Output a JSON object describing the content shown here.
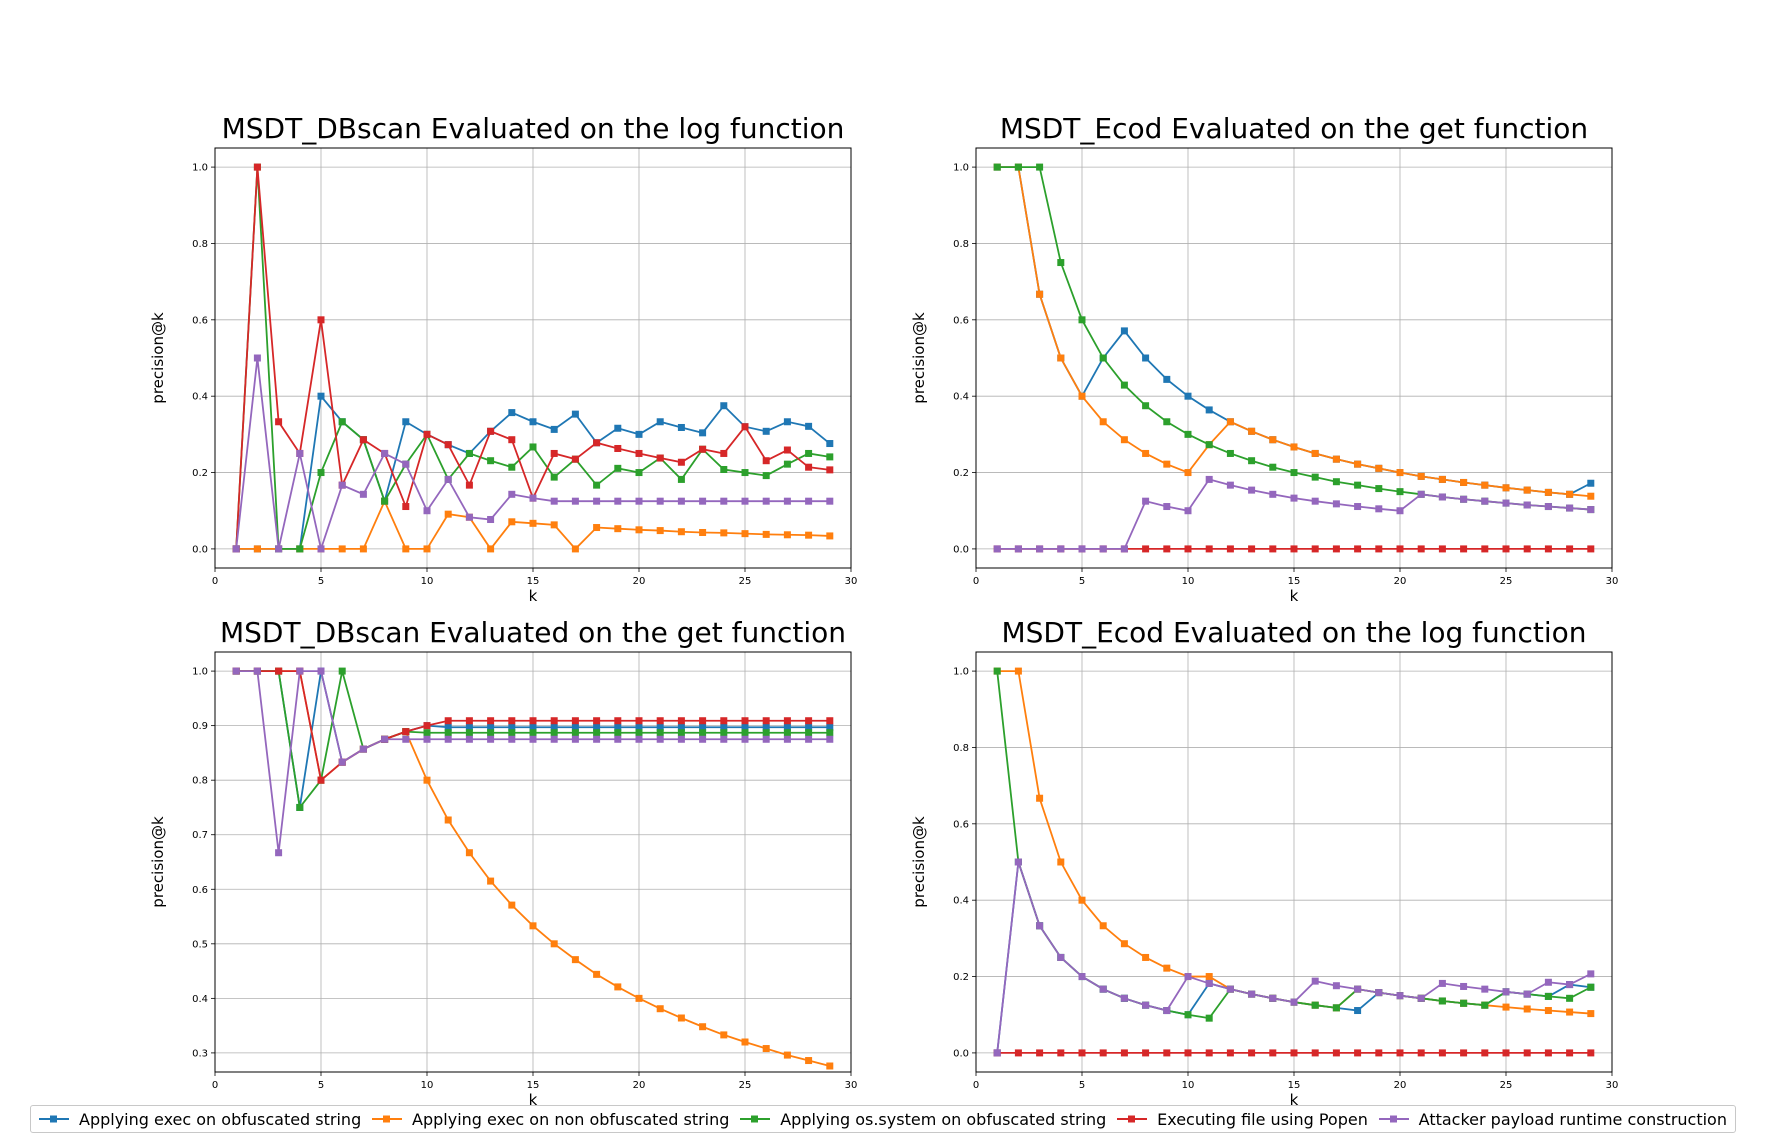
{
  "chart_data": [
    {
      "type": "line",
      "title": "MSDT_DBscan Evaluated on the log function",
      "xlabel": "k",
      "ylabel": "precision@k",
      "xlim": [
        0,
        30
      ],
      "ylim": [
        -0.05,
        1.05
      ],
      "xticks": [
        0,
        5,
        10,
        15,
        20,
        25,
        30
      ],
      "yticks": [
        0.0,
        0.2,
        0.4,
        0.6,
        0.8,
        1.0
      ],
      "grid": true,
      "x": [
        1,
        2,
        3,
        4,
        5,
        6,
        7,
        8,
        9,
        10,
        11,
        12,
        13,
        14,
        15,
        16,
        17,
        18,
        19,
        20,
        21,
        22,
        23,
        24,
        25,
        26,
        27,
        28,
        29
      ],
      "series": [
        {
          "name": "Applying exec on obfuscated string",
          "values": [
            0,
            0,
            0,
            0,
            0.4,
            0.333,
            0.286,
            0.125,
            0.333,
            0.3,
            0.273,
            0.25,
            0.308,
            0.357,
            0.333,
            0.313,
            0.353,
            0.278,
            0.316,
            0.3,
            0.333,
            0.318,
            0.304,
            0.375,
            0.32,
            0.308,
            0.333,
            0.321,
            0.276
          ]
        },
        {
          "name": "Applying exec on non obfuscated string",
          "values": [
            0,
            0,
            0,
            0,
            0,
            0,
            0,
            0.125,
            0,
            0,
            0.091,
            0.083,
            0,
            0.071,
            0.067,
            0.063,
            0,
            0.056,
            0.053,
            0.05,
            0.048,
            0.045,
            0.043,
            0.042,
            0.04,
            0.038,
            0.037,
            0.036,
            0.034
          ]
        },
        {
          "name": "Applying os.system on obfuscated string",
          "values": [
            0,
            1.0,
            0,
            0,
            0.2,
            0.333,
            0.286,
            0.125,
            0.222,
            0.3,
            0.182,
            0.25,
            0.231,
            0.214,
            0.267,
            0.188,
            0.235,
            0.167,
            0.211,
            0.2,
            0.238,
            0.182,
            0.261,
            0.208,
            0.2,
            0.192,
            0.222,
            0.25,
            0.241
          ]
        },
        {
          "name": "Executing file using Popen",
          "values": [
            0,
            1.0,
            0.333,
            0.25,
            0.6,
            0.167,
            0.286,
            0.25,
            0.111,
            0.3,
            0.273,
            0.167,
            0.308,
            0.286,
            0.133,
            0.25,
            0.235,
            0.278,
            0.263,
            0.25,
            0.238,
            0.227,
            0.261,
            0.25,
            0.32,
            0.231,
            0.259,
            0.214,
            0.207
          ]
        },
        {
          "name": "Attacker payload runtime construction",
          "values": [
            0,
            0.5,
            0,
            0.25,
            0,
            0.167,
            0.143,
            0.25,
            0.222,
            0.1,
            0.182,
            0.083,
            0.077,
            0.143,
            0.133,
            0.125,
            0.125,
            0.125,
            0.125,
            0.125,
            0.125,
            0.125,
            0.125,
            0.125,
            0.125,
            0.125,
            0.125,
            0.125,
            0.125
          ]
        }
      ]
    },
    {
      "type": "line",
      "title": "MSDT_Ecod Evaluated on the get function",
      "xlabel": "k",
      "ylabel": "precision@k",
      "xlim": [
        0,
        30
      ],
      "ylim": [
        -0.05,
        1.05
      ],
      "xticks": [
        0,
        5,
        10,
        15,
        20,
        25,
        30
      ],
      "yticks": [
        0.0,
        0.2,
        0.4,
        0.6,
        0.8,
        1.0
      ],
      "grid": true,
      "x": [
        1,
        2,
        3,
        4,
        5,
        6,
        7,
        8,
        9,
        10,
        11,
        12,
        13,
        14,
        15,
        16,
        17,
        18,
        19,
        20,
        21,
        22,
        23,
        24,
        25,
        26,
        27,
        28,
        29
      ],
      "series": [
        {
          "name": "Applying exec on obfuscated string",
          "values": [
            1.0,
            1.0,
            0.667,
            0.5,
            0.4,
            0.5,
            0.571,
            0.5,
            0.444,
            0.4,
            0.364,
            0.333,
            0.308,
            0.286,
            0.267,
            0.25,
            0.235,
            0.222,
            0.211,
            0.2,
            0.19,
            0.182,
            0.174,
            0.167,
            0.16,
            0.154,
            0.148,
            0.143,
            0.172
          ]
        },
        {
          "name": "Applying exec on non obfuscated string",
          "values": [
            1.0,
            1.0,
            0.667,
            0.5,
            0.4,
            0.333,
            0.286,
            0.25,
            0.222,
            0.2,
            0.273,
            0.333,
            0.308,
            0.286,
            0.267,
            0.25,
            0.235,
            0.222,
            0.211,
            0.2,
            0.19,
            0.182,
            0.174,
            0.167,
            0.16,
            0.154,
            0.148,
            0.143,
            0.138
          ]
        },
        {
          "name": "Applying os.system on obfuscated string",
          "values": [
            1.0,
            1.0,
            1.0,
            0.75,
            0.6,
            0.5,
            0.429,
            0.375,
            0.333,
            0.3,
            0.273,
            0.25,
            0.231,
            0.214,
            0.2,
            0.188,
            0.176,
            0.167,
            0.158,
            0.15,
            0.143,
            0.136,
            0.13,
            0.125,
            0.12,
            0.115,
            0.111,
            0.107,
            0.103
          ]
        },
        {
          "name": "Executing file using Popen",
          "values": [
            0,
            0,
            0,
            0,
            0,
            0,
            0,
            0,
            0,
            0,
            0,
            0,
            0,
            0,
            0,
            0,
            0,
            0,
            0,
            0,
            0,
            0,
            0,
            0,
            0,
            0,
            0,
            0,
            0
          ]
        },
        {
          "name": "Attacker payload runtime construction",
          "values": [
            0,
            0,
            0,
            0,
            0,
            0,
            0,
            0.125,
            0.111,
            0.1,
            0.182,
            0.167,
            0.154,
            0.143,
            0.133,
            0.125,
            0.118,
            0.111,
            0.105,
            0.1,
            0.143,
            0.136,
            0.13,
            0.125,
            0.12,
            0.115,
            0.111,
            0.107,
            0.103
          ]
        }
      ]
    },
    {
      "type": "line",
      "title": "MSDT_DBscan Evaluated on the get function",
      "xlabel": "k",
      "ylabel": "precision@k",
      "xlim": [
        0,
        30
      ],
      "ylim": [
        0.265,
        1.035
      ],
      "xticks": [
        0,
        5,
        10,
        15,
        20,
        25,
        30
      ],
      "yticks": [
        0.3,
        0.4,
        0.5,
        0.6,
        0.7,
        0.8,
        0.9,
        1.0
      ],
      "grid": true,
      "x": [
        1,
        2,
        3,
        4,
        5,
        6,
        7,
        8,
        9,
        10,
        11,
        12,
        13,
        14,
        15,
        16,
        17,
        18,
        19,
        20,
        21,
        22,
        23,
        24,
        25,
        26,
        27,
        28,
        29
      ],
      "series": [
        {
          "name": "Applying exec on obfuscated string",
          "values": [
            1.0,
            1.0,
            1.0,
            0.75,
            1.0,
            0.833,
            0.857,
            0.875,
            0.889,
            0.9,
            0.897,
            0.897,
            0.897,
            0.897,
            0.897,
            0.897,
            0.897,
            0.897,
            0.897,
            0.897,
            0.897,
            0.897,
            0.897,
            0.897,
            0.897,
            0.897,
            0.897,
            0.897,
            0.897
          ]
        },
        {
          "name": "Applying exec on non obfuscated string",
          "values": [
            1.0,
            1.0,
            1.0,
            1.0,
            0.8,
            0.833,
            0.857,
            0.875,
            0.889,
            0.8,
            0.727,
            0.667,
            0.615,
            0.571,
            0.533,
            0.5,
            0.471,
            0.444,
            0.421,
            0.4,
            0.381,
            0.364,
            0.348,
            0.333,
            0.32,
            0.308,
            0.296,
            0.286,
            0.276
          ]
        },
        {
          "name": "Applying os.system on obfuscated string",
          "values": [
            1.0,
            1.0,
            1.0,
            0.75,
            0.8,
            1.0,
            0.857,
            0.875,
            0.889,
            0.887,
            0.887,
            0.887,
            0.887,
            0.887,
            0.887,
            0.887,
            0.887,
            0.887,
            0.887,
            0.887,
            0.887,
            0.887,
            0.887,
            0.887,
            0.887,
            0.887,
            0.887,
            0.887,
            0.887
          ]
        },
        {
          "name": "Executing file using Popen",
          "values": [
            1.0,
            1.0,
            1.0,
            1.0,
            0.8,
            0.833,
            0.857,
            0.875,
            0.889,
            0.9,
            0.909,
            0.909,
            0.909,
            0.909,
            0.909,
            0.909,
            0.909,
            0.909,
            0.909,
            0.909,
            0.909,
            0.909,
            0.909,
            0.909,
            0.909,
            0.909,
            0.909,
            0.909,
            0.909
          ]
        },
        {
          "name": "Attacker payload runtime construction",
          "values": [
            1.0,
            1.0,
            0.667,
            1.0,
            1.0,
            0.833,
            0.857,
            0.875,
            0.875,
            0.875,
            0.875,
            0.875,
            0.875,
            0.875,
            0.875,
            0.875,
            0.875,
            0.875,
            0.875,
            0.875,
            0.875,
            0.875,
            0.875,
            0.875,
            0.875,
            0.875,
            0.875,
            0.875,
            0.875
          ]
        }
      ]
    },
    {
      "type": "line",
      "title": "MSDT_Ecod Evaluated on the log function",
      "xlabel": "k",
      "ylabel": "precision@k",
      "xlim": [
        0,
        30
      ],
      "ylim": [
        -0.05,
        1.05
      ],
      "xticks": [
        0,
        5,
        10,
        15,
        20,
        25,
        30
      ],
      "yticks": [
        0.0,
        0.2,
        0.4,
        0.6,
        0.8,
        1.0
      ],
      "grid": true,
      "x": [
        1,
        2,
        3,
        4,
        5,
        6,
        7,
        8,
        9,
        10,
        11,
        12,
        13,
        14,
        15,
        16,
        17,
        18,
        19,
        20,
        21,
        22,
        23,
        24,
        25,
        26,
        27,
        28,
        29
      ],
      "series": [
        {
          "name": "Applying exec on obfuscated string",
          "values": [
            0,
            0.5,
            0.333,
            0.25,
            0.2,
            0.167,
            0.143,
            0.125,
            0.111,
            0.1,
            0.182,
            0.167,
            0.154,
            0.143,
            0.133,
            0.125,
            0.118,
            0.111,
            0.158,
            0.15,
            0.143,
            0.136,
            0.13,
            0.125,
            0.16,
            0.154,
            0.148,
            0.179,
            0.172
          ]
        },
        {
          "name": "Applying exec on non obfuscated string",
          "values": [
            1.0,
            1.0,
            0.667,
            0.5,
            0.4,
            0.333,
            0.286,
            0.25,
            0.222,
            0.2,
            0.2,
            0.167,
            0.154,
            0.143,
            0.133,
            0.125,
            0.118,
            0.167,
            0.158,
            0.15,
            0.143,
            0.136,
            0.13,
            0.125,
            0.12,
            0.115,
            0.111,
            0.107,
            0.103
          ]
        },
        {
          "name": "Applying os.system on obfuscated string",
          "values": [
            1.0,
            0.5,
            0.333,
            0.25,
            0.2,
            0.167,
            0.143,
            0.125,
            0.111,
            0.1,
            0.091,
            0.167,
            0.154,
            0.143,
            0.133,
            0.125,
            0.118,
            0.167,
            0.158,
            0.15,
            0.143,
            0.136,
            0.13,
            0.125,
            0.16,
            0.154,
            0.148,
            0.143,
            0.172
          ]
        },
        {
          "name": "Executing file using Popen",
          "values": [
            0,
            0,
            0,
            0,
            0,
            0,
            0,
            0,
            0,
            0,
            0,
            0,
            0,
            0,
            0,
            0,
            0,
            0,
            0,
            0,
            0,
            0,
            0,
            0,
            0,
            0,
            0,
            0,
            0
          ]
        },
        {
          "name": "Attacker payload runtime construction",
          "values": [
            0,
            0.5,
            0.333,
            0.25,
            0.2,
            0.167,
            0.143,
            0.125,
            0.111,
            0.2,
            0.182,
            0.167,
            0.154,
            0.143,
            0.133,
            0.188,
            0.176,
            0.167,
            0.158,
            0.15,
            0.143,
            0.182,
            0.174,
            0.167,
            0.16,
            0.154,
            0.185,
            0.179,
            0.207
          ]
        }
      ]
    }
  ],
  "legend": {
    "placement": "bottom",
    "colors": [
      "#1f77b4",
      "#ff7f0e",
      "#2ca02c",
      "#d62728",
      "#9467bd"
    ],
    "items": [
      "Applying exec on obfuscated string",
      "Applying exec on non obfuscated string",
      "Applying os.system on obfuscated string",
      "Executing file using Popen",
      "Attacker payload runtime construction"
    ]
  }
}
